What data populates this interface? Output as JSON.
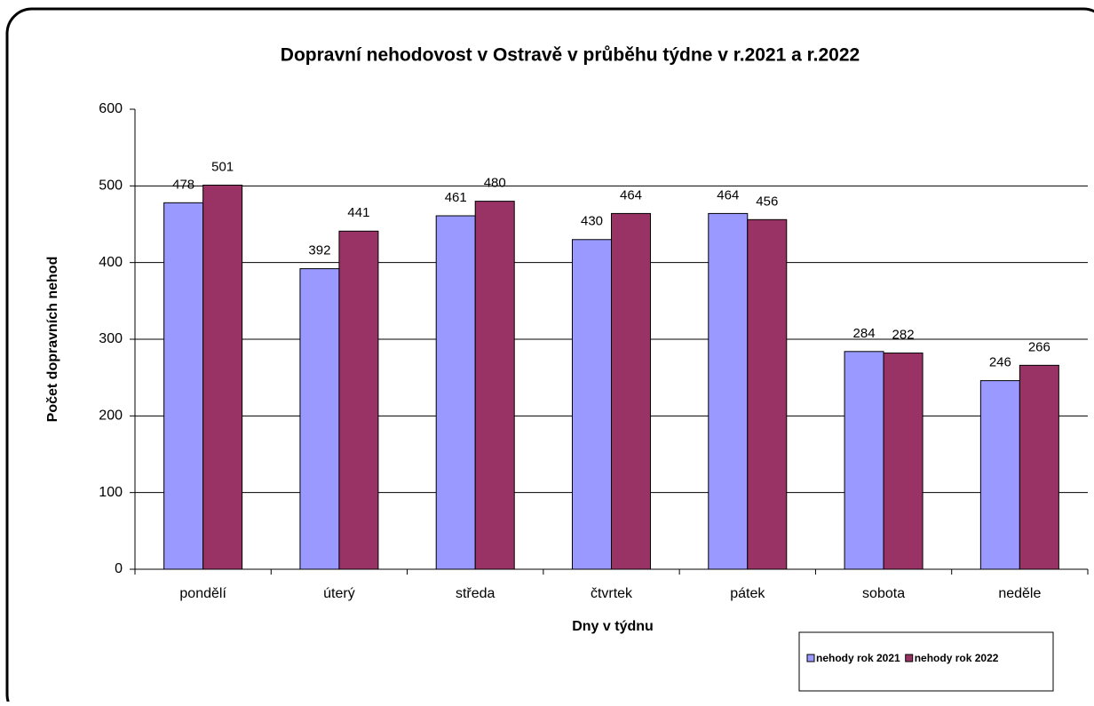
{
  "chart_data": {
    "type": "bar",
    "title": "Dopravní nehodovost v Ostravě v průběhu týdne v r.2021 a r.2022",
    "x_label": "Dny v týdnu",
    "y_label": "Počet dopravních nehod",
    "categories": [
      "pondělí",
      "úterý",
      "středa",
      "čtvrtek",
      "pátek",
      "sobota",
      "neděle"
    ],
    "series": [
      {
        "name": "nehody rok 2021",
        "color": "#9999ff",
        "values": [
          478,
          392,
          461,
          430,
          464,
          284,
          246
        ]
      },
      {
        "name": "nehody rok 2022",
        "color": "#993366",
        "values": [
          501,
          441,
          480,
          464,
          456,
          282,
          266
        ]
      }
    ],
    "ylim": [
      0,
      600
    ],
    "yticks": [
      0,
      100,
      200,
      300,
      400,
      500,
      600
    ],
    "grid": true,
    "legend": "bottom-right"
  }
}
